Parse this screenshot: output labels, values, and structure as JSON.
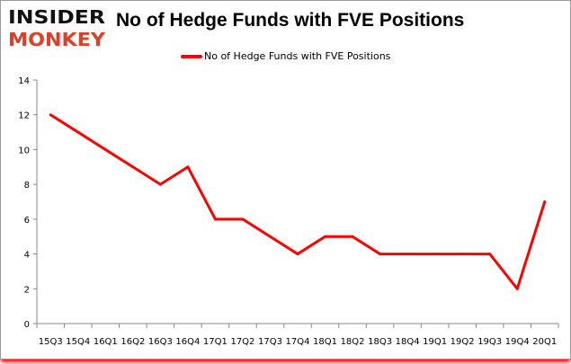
{
  "logo": {
    "line1": "INSIDER",
    "line2": "MONKEY"
  },
  "chart_data": {
    "type": "line",
    "title": "No of Hedge Funds with FVE Positions",
    "categories": [
      "15Q3",
      "15Q4",
      "16Q1",
      "16Q2",
      "16Q3",
      "16Q4",
      "17Q1",
      "17Q2",
      "17Q3",
      "17Q4",
      "18Q1",
      "18Q2",
      "18Q3",
      "18Q4",
      "19Q1",
      "19Q2",
      "19Q3",
      "19Q4",
      "20Q1"
    ],
    "series": [
      {
        "name": "No of Hedge Funds with FVE Positions",
        "color": "#ff0000",
        "values": [
          12,
          11,
          10,
          9,
          8,
          9,
          6,
          6,
          5,
          4,
          5,
          5,
          4,
          4,
          4,
          4,
          4,
          2,
          7
        ]
      }
    ],
    "ylim": [
      0,
      14
    ],
    "yticks": [
      0,
      2,
      4,
      6,
      8,
      10,
      12,
      14
    ],
    "grid": false,
    "legend": "top"
  }
}
